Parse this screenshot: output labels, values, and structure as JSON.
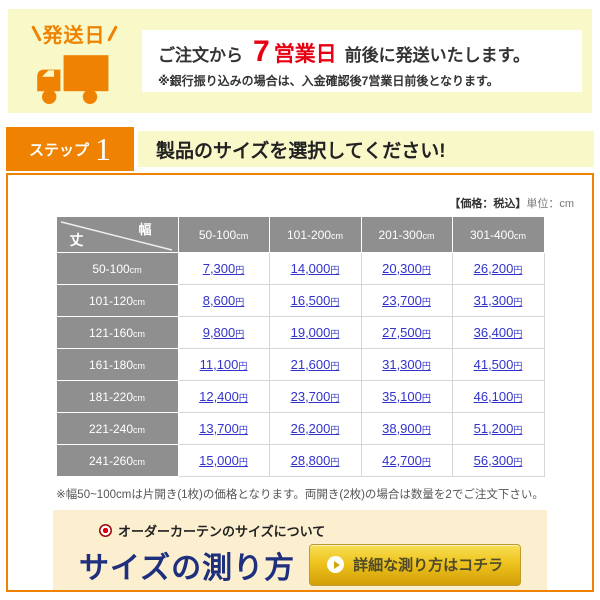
{
  "colors": {
    "accent_orange": "#ef8200",
    "banner_yellow": "#f8f8c9",
    "alert_red": "#e60012",
    "table_header_gray": "#8f8f8f",
    "price_link_blue": "#3333cc",
    "measure_cream": "#fcefd0",
    "measure_navy": "#1e2f7d",
    "button_gold": "#eec31e"
  },
  "shipping_banner": {
    "ship_label": "発送日",
    "line1_prefix": "ご注文から",
    "line1_number": "7",
    "line1_unit": "営業日",
    "line1_suffix": "前後に発送いたします。",
    "line2": "※銀行振り込みの場合は、入金確認後7営業日前後となります。"
  },
  "step": {
    "label": "ステップ",
    "number": "1",
    "title": "製品のサイズを選択してください!"
  },
  "price_table": {
    "unit_note_bold": "【価格：税込】",
    "unit_note_rest": "単位：cm",
    "corner": {
      "width_label": "幅",
      "height_label": "丈"
    },
    "col_unit": "cm",
    "columns": [
      "50-100",
      "101-200",
      "201-300",
      "301-400"
    ],
    "price_suffix": "円",
    "rows": [
      {
        "label": "50-100",
        "prices": [
          "7,300",
          "14,000",
          "20,300",
          "26,200"
        ]
      },
      {
        "label": "101-120",
        "prices": [
          "8,600",
          "16,500",
          "23,700",
          "31,300"
        ]
      },
      {
        "label": "121-160",
        "prices": [
          "9,800",
          "19,000",
          "27,500",
          "36,400"
        ]
      },
      {
        "label": "161-180",
        "prices": [
          "11,100",
          "21,600",
          "31,300",
          "41,500"
        ]
      },
      {
        "label": "181-220",
        "prices": [
          "12,400",
          "23,700",
          "35,100",
          "46,100"
        ]
      },
      {
        "label": "221-240",
        "prices": [
          "13,700",
          "26,200",
          "38,900",
          "51,200"
        ]
      },
      {
        "label": "241-260",
        "prices": [
          "15,000",
          "28,800",
          "42,700",
          "56,300"
        ]
      }
    ],
    "footnote": "※幅50~100cmは片開き(1枚)の価格となります。両開き(2枚)の場合は数量を2でご注文下さい。"
  },
  "measure": {
    "heading": "オーダーカーテンのサイズについて",
    "title": "サイズの測り方",
    "button_label": "詳細な測り方はコチラ"
  }
}
